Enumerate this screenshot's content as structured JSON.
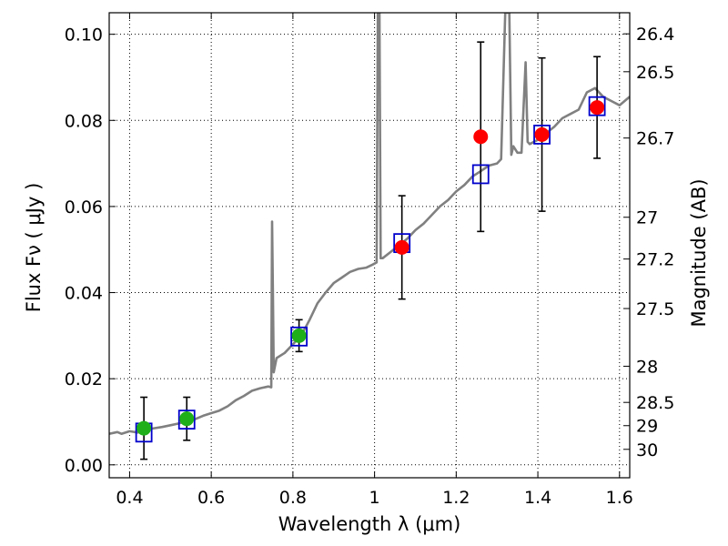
{
  "chart_data": {
    "type": "scatter",
    "xlabel": "Wavelength  λ (μm)",
    "ylabel": "Flux  Fν  ( μJy )",
    "y2label": "Magnitude (AB)",
    "xlim": [
      0.35,
      1.625
    ],
    "ylim": [
      -0.003,
      0.105
    ],
    "grid": true,
    "xticks": [
      {
        "value": 0.4,
        "label": "0.4"
      },
      {
        "value": 0.6,
        "label": "0.6"
      },
      {
        "value": 0.8,
        "label": "0.8"
      },
      {
        "value": 1.0,
        "label": "1"
      },
      {
        "value": 1.2,
        "label": "1.2"
      },
      {
        "value": 1.4,
        "label": "1.4"
      },
      {
        "value": 1.6,
        "label": "1.6"
      }
    ],
    "yticks": [
      {
        "value": 0.0,
        "label": "0.00"
      },
      {
        "value": 0.02,
        "label": "0.02"
      },
      {
        "value": 0.04,
        "label": "0.04"
      },
      {
        "value": 0.06,
        "label": "0.06"
      },
      {
        "value": 0.08,
        "label": "0.08"
      },
      {
        "value": 0.1,
        "label": "0.10"
      }
    ],
    "y2ticks": [
      {
        "flux": 0.1001,
        "label": "26.4"
      },
      {
        "flux": 0.0913,
        "label": "26.5"
      },
      {
        "flux": 0.0759,
        "label": "26.7"
      },
      {
        "flux": 0.0575,
        "label": "27"
      },
      {
        "flux": 0.0478,
        "label": "27.2"
      },
      {
        "flux": 0.0363,
        "label": "27.5"
      },
      {
        "flux": 0.0229,
        "label": "28"
      },
      {
        "flux": 0.0145,
        "label": "28.5"
      },
      {
        "flux": 0.0091,
        "label": "29"
      },
      {
        "flux": 0.0036,
        "label": "30"
      }
    ],
    "model_spectrum": {
      "color": "#808080",
      "points": [
        [
          0.35,
          0.0072
        ],
        [
          0.37,
          0.0076
        ],
        [
          0.38,
          0.0072
        ],
        [
          0.4,
          0.0078
        ],
        [
          0.42,
          0.0075
        ],
        [
          0.44,
          0.0082
        ],
        [
          0.46,
          0.0085
        ],
        [
          0.48,
          0.0088
        ],
        [
          0.5,
          0.0092
        ],
        [
          0.52,
          0.0096
        ],
        [
          0.54,
          0.0102
        ],
        [
          0.56,
          0.0106
        ],
        [
          0.58,
          0.0114
        ],
        [
          0.6,
          0.012
        ],
        [
          0.62,
          0.0126
        ],
        [
          0.64,
          0.0136
        ],
        [
          0.66,
          0.015
        ],
        [
          0.68,
          0.016
        ],
        [
          0.7,
          0.0172
        ],
        [
          0.72,
          0.0178
        ],
        [
          0.74,
          0.0182
        ],
        [
          0.747,
          0.018
        ],
        [
          0.749,
          0.0565
        ],
        [
          0.751,
          0.04
        ],
        [
          0.753,
          0.0215
        ],
        [
          0.76,
          0.0248
        ],
        [
          0.78,
          0.026
        ],
        [
          0.8,
          0.028
        ],
        [
          0.82,
          0.03
        ],
        [
          0.84,
          0.0335
        ],
        [
          0.86,
          0.0375
        ],
        [
          0.88,
          0.04
        ],
        [
          0.9,
          0.0422
        ],
        [
          0.92,
          0.0435
        ],
        [
          0.94,
          0.0448
        ],
        [
          0.96,
          0.0455
        ],
        [
          0.98,
          0.0458
        ],
        [
          0.995,
          0.0465
        ],
        [
          1.005,
          0.047
        ],
        [
          1.008,
          0.105
        ],
        [
          1.012,
          0.105
        ],
        [
          1.015,
          0.048
        ],
        [
          1.02,
          0.048
        ],
        [
          1.04,
          0.0495
        ],
        [
          1.06,
          0.051
        ],
        [
          1.08,
          0.0525
        ],
        [
          1.1,
          0.0545
        ],
        [
          1.12,
          0.056
        ],
        [
          1.14,
          0.058
        ],
        [
          1.16,
          0.06
        ],
        [
          1.18,
          0.0615
        ],
        [
          1.2,
          0.0635
        ],
        [
          1.22,
          0.065
        ],
        [
          1.24,
          0.067
        ],
        [
          1.26,
          0.0682
        ],
        [
          1.28,
          0.0695
        ],
        [
          1.3,
          0.07
        ],
        [
          1.31,
          0.071
        ],
        [
          1.32,
          0.105
        ],
        [
          1.33,
          0.105
        ],
        [
          1.335,
          0.072
        ],
        [
          1.34,
          0.074
        ],
        [
          1.35,
          0.0725
        ],
        [
          1.36,
          0.0725
        ],
        [
          1.37,
          0.0935
        ],
        [
          1.375,
          0.075
        ],
        [
          1.38,
          0.0745
        ],
        [
          1.4,
          0.0755
        ],
        [
          1.42,
          0.077
        ],
        [
          1.44,
          0.0785
        ],
        [
          1.46,
          0.0805
        ],
        [
          1.48,
          0.0815
        ],
        [
          1.5,
          0.0825
        ],
        [
          1.52,
          0.0865
        ],
        [
          1.54,
          0.0875
        ],
        [
          1.56,
          0.0855
        ],
        [
          1.58,
          0.0845
        ],
        [
          1.6,
          0.0835
        ],
        [
          1.625,
          0.0855
        ]
      ]
    },
    "series": [
      {
        "marker": "square",
        "color": "#0000cc",
        "points": [
          {
            "x": 0.435,
            "y": 0.0075
          },
          {
            "x": 0.54,
            "y": 0.0105
          },
          {
            "x": 0.815,
            "y": 0.0298
          },
          {
            "x": 1.067,
            "y": 0.0515
          },
          {
            "x": 1.26,
            "y": 0.0675
          },
          {
            "x": 1.41,
            "y": 0.0767
          },
          {
            "x": 1.545,
            "y": 0.0833
          }
        ]
      },
      {
        "marker": "circle",
        "color": "#1fb019",
        "points": [
          {
            "x": 0.435,
            "y": 0.0085,
            "err": 0.0072
          },
          {
            "x": 0.54,
            "y": 0.0107,
            "err": 0.005
          },
          {
            "x": 0.815,
            "y": 0.03,
            "err": 0.0037
          }
        ]
      },
      {
        "marker": "circle",
        "color": "#ff0000",
        "points": [
          {
            "x": 1.067,
            "y": 0.0505,
            "err": 0.012
          },
          {
            "x": 1.26,
            "y": 0.0762,
            "err": 0.022
          },
          {
            "x": 1.41,
            "y": 0.0767,
            "err": 0.0178
          },
          {
            "x": 1.545,
            "y": 0.083,
            "err": 0.0118
          }
        ]
      }
    ]
  }
}
